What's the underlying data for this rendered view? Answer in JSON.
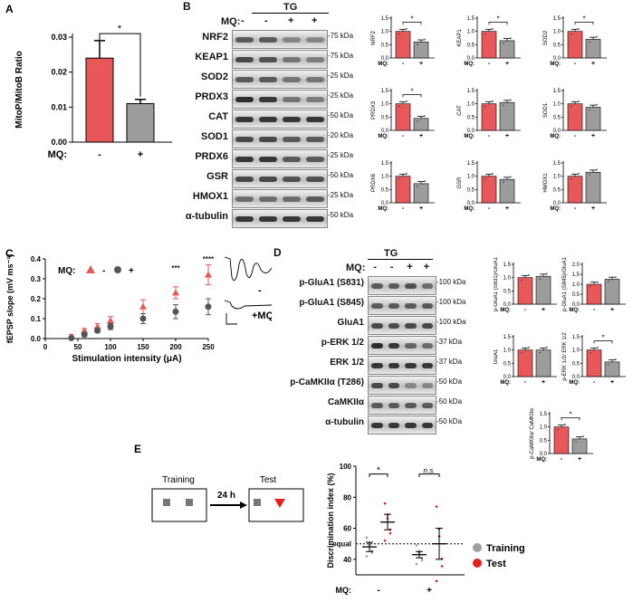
{
  "panel_letters": {
    "a": "A",
    "b": "B",
    "c": "C",
    "d": "D",
    "e": "E"
  },
  "colors": {
    "red": "#e8585a",
    "grey": "#9c9c9c",
    "dark": "#555555",
    "test_red": "#e61e1e",
    "train_grey": "#a0a0a0"
  },
  "panel_a": {
    "ylabel": "MitoP/MitoB Ratio",
    "mq_label": "MQ:",
    "groups": [
      "-",
      "+"
    ],
    "ticks": [
      "0.00",
      "0.01",
      "0.02",
      "0.03"
    ],
    "sig": "*"
  },
  "panel_b": {
    "group_label": "TG",
    "mq_label": "MQ:",
    "lanes": [
      "-",
      "-",
      "+",
      "+"
    ],
    "rows": [
      {
        "name": "NRF2",
        "kda": "75 kDa"
      },
      {
        "name": "KEAP1",
        "kda": "75 kDa"
      },
      {
        "name": "SOD2",
        "kda": "25 kDa"
      },
      {
        "name": "PRDX3",
        "kda": "25 kDa"
      },
      {
        "name": "CAT",
        "kda": "50 kDa"
      },
      {
        "name": "SOD1",
        "kda": "20 kDa"
      },
      {
        "name": "PRDX6",
        "kda": "25 kDa"
      },
      {
        "name": "GSR",
        "kda": "50 kDa"
      },
      {
        "name": "HMOX1",
        "kda": "25 kDa"
      },
      {
        "name": "α-tubulin",
        "kda": "50 kDa"
      }
    ],
    "mini_ticks": [
      "0.0",
      "0.5",
      "1.0",
      "1.5"
    ],
    "mini_xlabel": "MQ:",
    "minis": [
      {
        "label": "NRF2",
        "v": [
          1.0,
          0.6
        ],
        "sig": "*"
      },
      {
        "label": "KEAP1",
        "v": [
          1.0,
          0.65
        ],
        "sig": "*"
      },
      {
        "label": "SOD2",
        "v": [
          1.0,
          0.7
        ],
        "sig": "*"
      },
      {
        "label": "PRDX3",
        "v": [
          1.0,
          0.45
        ],
        "sig": "*"
      },
      {
        "label": "CAT",
        "v": [
          1.0,
          1.05
        ],
        "sig": ""
      },
      {
        "label": "SOD1",
        "v": [
          1.0,
          0.87
        ],
        "sig": ""
      },
      {
        "label": "PRDX6",
        "v": [
          1.0,
          0.72
        ],
        "sig": ""
      },
      {
        "label": "GSR",
        "v": [
          1.0,
          0.88
        ],
        "sig": ""
      },
      {
        "label": "HMOX1",
        "v": [
          1.0,
          1.15
        ],
        "sig": ""
      }
    ]
  },
  "panel_c": {
    "ylabel": "fEPSP slope (mV ms⁻¹)",
    "xlabel": "Stimulation intensity (μA)",
    "mq_label": "MQ:",
    "legend": [
      "-",
      "+"
    ],
    "xticks": [
      "0",
      "50",
      "100",
      "150",
      "200",
      "250"
    ],
    "yticks": [
      "0.0",
      "0.1",
      "0.2",
      "0.3",
      "0.4"
    ],
    "trace_minus": "-",
    "trace_plus": "+MQ",
    "sigs": [
      {
        "x": 200,
        "text": "***"
      },
      {
        "x": 250,
        "text": "****"
      }
    ]
  },
  "panel_d": {
    "group_label": "TG",
    "mq_label": "MQ:",
    "lanes": [
      "-",
      "-",
      "+",
      "+"
    ],
    "rows": [
      {
        "name": "p-GluA1 (S831)",
        "kda": "100 kDa"
      },
      {
        "name": "p-GluA1 (S845)",
        "kda": "100 kDa"
      },
      {
        "name": "GluA1",
        "kda": "100 kDa"
      },
      {
        "name": "p-ERK 1/2",
        "kda": "37 kDa"
      },
      {
        "name": "ERK 1/2",
        "kda": "37 kDa"
      },
      {
        "name": "p-CaMKIIα (T286)",
        "kda": "50 kDa"
      },
      {
        "name": "CaMKIIα",
        "kda": "50 kDa"
      },
      {
        "name": "α-tubulin",
        "kda": "50 kDa"
      }
    ],
    "minis": [
      {
        "label": "p-GluA1 (S831)/GluA1",
        "v": [
          1.0,
          1.05
        ],
        "sig": "",
        "ticks": [
          "0.0",
          "0.5",
          "1.0",
          "1.5"
        ],
        "max": 1.5
      },
      {
        "label": "p-GluA1 (S845)/GluA1",
        "v": [
          1.0,
          1.25
        ],
        "sig": "",
        "ticks": [
          "0.0",
          "0.5",
          "1.0",
          "1.5",
          "2.0"
        ],
        "max": 2.0
      },
      {
        "label": "GluA1",
        "v": [
          1.0,
          1.0
        ],
        "sig": "",
        "ticks": [
          "0.0",
          "0.5",
          "1.0",
          "1.5"
        ],
        "max": 1.5
      },
      {
        "label": "p-ERK 1/2/ ERK 1/2",
        "v": [
          1.0,
          0.55
        ],
        "sig": "*",
        "ticks": [
          "0.0",
          "0.5",
          "1.0",
          "1.5"
        ],
        "max": 1.5
      },
      {
        "label": "p-CaMKIIα/ CaMKIIα",
        "v": [
          1.0,
          0.55
        ],
        "sig": "*",
        "ticks": [
          "0.0",
          "0.5",
          "1.0",
          "1.5"
        ],
        "max": 1.5
      }
    ]
  },
  "panel_e": {
    "training_label": "Training",
    "test_label": "Test",
    "delay_label": "24 h",
    "ylabel": "Discrimination index (%)",
    "yticks": [
      "40",
      "60",
      "80",
      "100"
    ],
    "equal_label": "equal",
    "mq_label": "MQ:",
    "groups": [
      "-",
      "+"
    ],
    "sig_minus": "*",
    "sig_plus": "n.s.",
    "legend": [
      "Training",
      "Test"
    ]
  },
  "chart_data": [
    {
      "type": "bar",
      "title": "",
      "ylabel": "MitoP/MitoB Ratio",
      "categories": [
        "-",
        "+"
      ],
      "values": [
        0.024,
        0.011
      ],
      "errors": [
        0.005,
        0.0012
      ],
      "ylim": [
        0,
        0.03
      ]
    },
    {
      "type": "scatter",
      "ylabel": "fEPSP slope (mV ms⁻¹)",
      "xlabel": "Stimulation intensity (μA)",
      "xlim": [
        0,
        250
      ],
      "ylim": [
        0,
        0.4
      ],
      "series": [
        {
          "name": "-",
          "x": [
            40,
            60,
            80,
            100,
            150,
            200,
            250
          ],
          "y": [
            0.01,
            0.04,
            0.06,
            0.09,
            0.16,
            0.23,
            0.32
          ],
          "err": [
            0.01,
            0.01,
            0.015,
            0.02,
            0.035,
            0.03,
            0.05
          ]
        },
        {
          "name": "+",
          "x": [
            40,
            60,
            80,
            100,
            150,
            200,
            250
          ],
          "y": [
            0.003,
            0.02,
            0.04,
            0.06,
            0.1,
            0.135,
            0.16
          ],
          "err": [
            0.005,
            0.01,
            0.01,
            0.015,
            0.025,
            0.035,
            0.04
          ]
        }
      ]
    },
    {
      "type": "scatter",
      "ylabel": "Discrimination index (%)",
      "ylim": [
        30,
        100
      ],
      "series": [
        {
          "name": "Training",
          "group": [
            "-",
            "+"
          ],
          "mean": [
            48,
            43
          ],
          "err": [
            3,
            2
          ]
        },
        {
          "name": "Test",
          "group": [
            "-",
            "+"
          ],
          "mean": [
            64,
            50
          ],
          "err": [
            5,
            10
          ]
        }
      ]
    }
  ]
}
